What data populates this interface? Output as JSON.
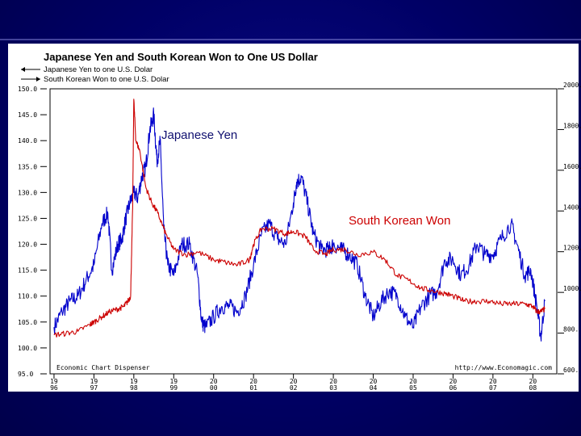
{
  "chart_data": {
    "type": "line",
    "title": "Japanese Yen and South Korean Won to One US Dollar",
    "legend": [
      {
        "label": "Japanese Yen to one U.S. Dolar",
        "color": "#0000cc",
        "arrow": "left"
      },
      {
        "label": "South Korean Won to one U.S. Dolar",
        "color": "#cc0000",
        "arrow": "right"
      }
    ],
    "left_axis": {
      "range": [
        95,
        150
      ],
      "ticks": [
        "150.0",
        "145.0",
        "140.0",
        "135.0",
        "130.0",
        "125.0",
        "120.0",
        "115.0",
        "110.0",
        "105.0",
        "100.0",
        "95.0"
      ],
      "ticks_values": [
        150,
        145,
        140,
        135,
        130,
        125,
        120,
        115,
        110,
        105,
        100,
        95
      ]
    },
    "right_axis": {
      "range": [
        600,
        2000
      ],
      "ticks": [
        "2000.",
        "1800.",
        "1600.",
        "1400.",
        "1200.",
        "1000.",
        "800.",
        "600."
      ],
      "ticks_values": [
        2000,
        1800,
        1600,
        1400,
        1200,
        1000,
        800,
        600
      ]
    },
    "x_ticks": [
      {
        "top": "19",
        "bottom": "96",
        "t": 1996.0
      },
      {
        "top": "19",
        "bottom": "97",
        "t": 1997.0
      },
      {
        "top": "19",
        "bottom": "98",
        "t": 1998.0
      },
      {
        "top": "19",
        "bottom": "99",
        "t": 1999.0
      },
      {
        "top": "20",
        "bottom": "00",
        "t": 2000.0
      },
      {
        "top": "20",
        "bottom": "01",
        "t": 2001.0
      },
      {
        "top": "20",
        "bottom": "02",
        "t": 2002.0
      },
      {
        "top": "20",
        "bottom": "03",
        "t": 2003.0
      },
      {
        "top": "20",
        "bottom": "04",
        "t": 2004.0
      },
      {
        "top": "20",
        "bottom": "05",
        "t": 2005.0
      },
      {
        "top": "20",
        "bottom": "06",
        "t": 2006.0
      },
      {
        "top": "20",
        "bottom": "07",
        "t": 2007.0
      },
      {
        "top": "20",
        "bottom": "08",
        "t": 2008.0
      }
    ],
    "xlim": [
      1995.9,
      2008.6
    ],
    "annotations": {
      "yen_label": "Japanese Yen",
      "won_label": "South Korean Won",
      "source_left": "Economic Chart Dispenser",
      "source_right": "http://www.Economagic.com"
    },
    "series": [
      {
        "name": "Japanese Yen to one U.S. Dolar",
        "axis": "left",
        "color": "#0000cc",
        "x": [
          1996.0,
          1996.2,
          1996.4,
          1996.6,
          1996.8,
          1997.0,
          1997.2,
          1997.35,
          1997.45,
          1997.6,
          1997.7,
          1997.8,
          1997.9,
          1998.0,
          1998.1,
          1998.2,
          1998.3,
          1998.4,
          1998.5,
          1998.58,
          1998.66,
          1998.75,
          1998.85,
          1999.0,
          1999.2,
          1999.4,
          1999.6,
          1999.7,
          1999.8,
          2000.0,
          2000.2,
          2000.4,
          2000.6,
          2000.8,
          2001.0,
          2001.2,
          2001.4,
          2001.6,
          2001.8,
          2002.0,
          2002.08,
          2002.2,
          2002.35,
          2002.5,
          2002.7,
          2002.9,
          2003.0,
          2003.2,
          2003.4,
          2003.6,
          2003.8,
          2004.0,
          2004.2,
          2004.4,
          2004.6,
          2004.8,
          2005.0,
          2005.2,
          2005.4,
          2005.6,
          2005.8,
          2006.0,
          2006.2,
          2006.4,
          2006.6,
          2006.8,
          2007.0,
          2007.2,
          2007.45,
          2007.6,
          2007.8,
          2007.95,
          2008.1,
          2008.2,
          2008.3
        ],
        "y": [
          104,
          107,
          109,
          110,
          113,
          116,
          124,
          126,
          115,
          120,
          121,
          125,
          128,
          130,
          129,
          133,
          135,
          142,
          145,
          136,
          140,
          123,
          116,
          114,
          120,
          120,
          114,
          105,
          104,
          106,
          108,
          108,
          107,
          110,
          116,
          122,
          124,
          121,
          120,
          128,
          132,
          133,
          128,
          122,
          119,
          119,
          120,
          119,
          118,
          116,
          110,
          106,
          109,
          111,
          110,
          106,
          104,
          108,
          110,
          111,
          117,
          117,
          114,
          116,
          120,
          118,
          118,
          121,
          124,
          120,
          114,
          115,
          108,
          102,
          109
        ]
      },
      {
        "name": "South Korean Won to one U.S. Dolar",
        "axis": "left",
        "color": "#cc0000",
        "x": [
          1996.0,
          1996.3,
          1996.6,
          1996.9,
          1997.0,
          1997.2,
          1997.4,
          1997.6,
          1997.75,
          1997.85,
          1997.92,
          1997.97,
          1998.0,
          1998.05,
          1998.15,
          1998.3,
          1998.45,
          1998.6,
          1998.8,
          1999.0,
          1999.3,
          1999.6,
          2000.0,
          2000.3,
          2000.6,
          2000.9,
          2001.0,
          2001.2,
          2001.5,
          2001.8,
          2002.0,
          2002.3,
          2002.5,
          2002.8,
          2003.0,
          2003.3,
          2003.6,
          2004.0,
          2004.3,
          2004.6,
          2004.9,
          2005.2,
          2005.5,
          2005.8,
          2006.0,
          2006.3,
          2006.6,
          2006.9,
          2007.2,
          2007.5,
          2007.8,
          2008.0,
          2008.1,
          2008.2,
          2008.3
        ],
        "y": [
          102.5,
          102.8,
          103.2,
          104.5,
          105,
          106,
          107,
          107.5,
          108,
          109,
          110,
          127,
          148,
          140,
          138,
          131,
          128,
          126,
          122,
          119,
          118,
          118.5,
          117,
          116.5,
          116,
          117,
          120,
          123,
          123,
          122,
          122.5,
          121.5,
          119,
          118,
          119,
          119,
          118,
          118.5,
          117,
          114,
          113,
          111.5,
          111,
          110.5,
          110,
          109,
          109,
          109,
          108.5,
          108.5,
          108.5,
          108,
          107,
          107,
          107.5
        ]
      }
    ]
  }
}
